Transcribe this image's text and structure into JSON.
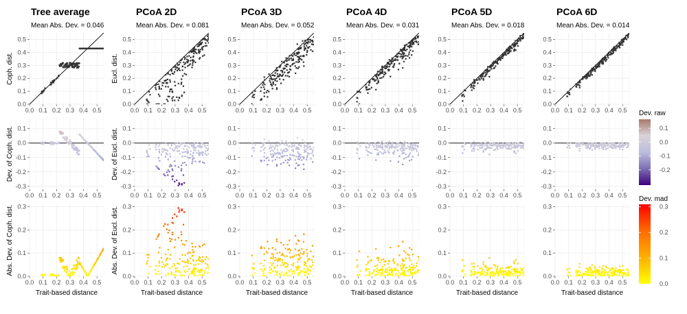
{
  "chart_data": {
    "type": "scatter",
    "panels": [
      {
        "title": "Tree average",
        "subtitle": "Mean Abs. Dev. = 0.046",
        "ylabels": [
          "Coph. dist.",
          "Dev. of Coph. dist.",
          "Abs. Dev. of Coph. dist."
        ]
      },
      {
        "title": "PCoA 2D",
        "subtitle": "Mean Abs. Dev. = 0.081",
        "ylabels": [
          "Eucl. dist.",
          "Dev. of Eucl. dist.",
          "Abs. Dev. of Eucl. dist."
        ]
      },
      {
        "title": "PCoA 3D",
        "subtitle": "Mean Abs. Dev. = 0.052",
        "ylabels": [
          "",
          "",
          ""
        ]
      },
      {
        "title": "PCoA 4D",
        "subtitle": "Mean Abs. Dev. = 0.031",
        "ylabels": [
          "",
          "",
          ""
        ]
      },
      {
        "title": "PCoA 5D",
        "subtitle": "Mean Abs. Dev. = 0.018",
        "ylabels": [
          "",
          "",
          ""
        ]
      },
      {
        "title": "PCoA 6D",
        "subtitle": "Mean Abs. Dev. = 0.014",
        "ylabels": [
          "",
          "",
          ""
        ]
      }
    ],
    "xlabel": "Trait-based distance",
    "x_ticks": [
      "0.0",
      "0.1",
      "0.2",
      "0.3",
      "0.4",
      "0.5"
    ],
    "xlim": [
      0,
      0.55
    ],
    "rows": [
      {
        "kind": "distance",
        "ylim": [
          0,
          0.55
        ],
        "y_ticks": [
          "0.0",
          "0.1",
          "0.2",
          "0.3",
          "0.4",
          "0.5"
        ],
        "ref_line": "identity"
      },
      {
        "kind": "deviation",
        "ylim": [
          -0.32,
          0.17
        ],
        "y_ticks": [
          "-0.3",
          "-0.2",
          "-0.1",
          "0.0",
          "0.1"
        ],
        "ref_line": "zero"
      },
      {
        "kind": "abs_deviation",
        "ylim": [
          0,
          0.31
        ],
        "y_ticks": [
          "0.0",
          "0.1",
          "0.2",
          "0.3"
        ]
      }
    ],
    "deviation_range": [
      -0.31,
      0.165
    ],
    "representative_points": [
      {
        "panel": "Tree average",
        "points": [
          [
            0.1,
            0.11
          ],
          [
            0.15,
            0.16
          ],
          [
            0.2,
            0.22
          ],
          [
            0.25,
            0.3
          ],
          [
            0.3,
            0.34
          ],
          [
            0.35,
            0.43
          ],
          [
            0.4,
            0.43
          ],
          [
            0.45,
            0.43
          ],
          [
            0.5,
            0.43
          ],
          [
            0.55,
            0.43
          ]
        ]
      },
      {
        "panel": "PCoA 2D",
        "points": [
          [
            0.1,
            0.02
          ],
          [
            0.2,
            0.1
          ],
          [
            0.25,
            0.2
          ],
          [
            0.3,
            0.05
          ],
          [
            0.35,
            0.25
          ],
          [
            0.4,
            0.32
          ],
          [
            0.45,
            0.38
          ],
          [
            0.5,
            0.43
          ],
          [
            0.55,
            0.48
          ]
        ]
      },
      {
        "panel": "PCoA 3D",
        "points": [
          [
            0.2,
            0.15
          ],
          [
            0.3,
            0.22
          ],
          [
            0.35,
            0.3
          ],
          [
            0.4,
            0.36
          ],
          [
            0.45,
            0.42
          ],
          [
            0.5,
            0.46
          ]
        ]
      },
      {
        "panel": "PCoA 4D",
        "points": [
          [
            0.2,
            0.18
          ],
          [
            0.3,
            0.26
          ],
          [
            0.35,
            0.32
          ],
          [
            0.4,
            0.38
          ],
          [
            0.45,
            0.43
          ],
          [
            0.5,
            0.48
          ]
        ]
      },
      {
        "panel": "PCoA 5D",
        "points": [
          [
            0.2,
            0.19
          ],
          [
            0.3,
            0.29
          ],
          [
            0.35,
            0.34
          ],
          [
            0.4,
            0.39
          ],
          [
            0.45,
            0.44
          ],
          [
            0.5,
            0.49
          ]
        ]
      },
      {
        "panel": "PCoA 6D",
        "points": [
          [
            0.2,
            0.2
          ],
          [
            0.3,
            0.3
          ],
          [
            0.35,
            0.35
          ],
          [
            0.4,
            0.4
          ],
          [
            0.45,
            0.45
          ],
          [
            0.5,
            0.5
          ]
        ]
      }
    ],
    "legends": [
      {
        "title": "Dev. raw",
        "ticks": [
          "0.1",
          "0.0",
          "-0.1",
          "-0.2"
        ],
        "tick_values": [
          0.1,
          0.0,
          -0.1,
          -0.2
        ],
        "range": [
          -0.31,
          0.165
        ],
        "colors": [
          "#3f007d",
          "#7c6fb5",
          "#bcbddc",
          "#d9d3d8",
          "#a9796b"
        ]
      },
      {
        "title": "Dev. mad",
        "ticks": [
          "0.3",
          "0.2",
          "0.1",
          "0.0"
        ],
        "tick_values": [
          0.3,
          0.2,
          0.1,
          0.0
        ],
        "range": [
          0,
          0.31
        ],
        "colors": [
          "#ffff00",
          "#ffb000",
          "#ff6a00",
          "#ff0000"
        ]
      }
    ],
    "colors": {
      "panel_bg": "#ffffff",
      "grid_major": "#ebebeb",
      "grid_minor": "#f5f5f5",
      "point_dark": "#333333"
    }
  }
}
